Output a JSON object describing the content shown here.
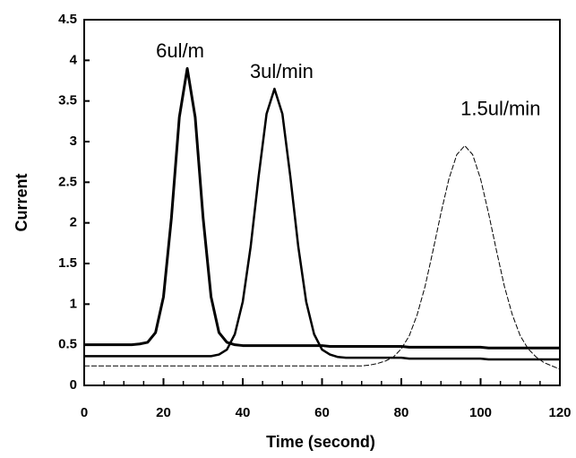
{
  "chart_data": {
    "type": "line",
    "xlabel": "Time (second)",
    "ylabel": "Current",
    "x": [
      0,
      2,
      4,
      6,
      8,
      10,
      12,
      14,
      16,
      18,
      20,
      22,
      24,
      26,
      28,
      30,
      32,
      34,
      36,
      38,
      40,
      42,
      44,
      46,
      48,
      50,
      52,
      54,
      56,
      58,
      60,
      62,
      64,
      66,
      68,
      70,
      72,
      74,
      76,
      78,
      80,
      82,
      84,
      86,
      88,
      90,
      92,
      94,
      96,
      98,
      100,
      102,
      104,
      106,
      108,
      110,
      112,
      114,
      116,
      118,
      120
    ],
    "series": [
      {
        "name": "6ul/m",
        "color": "#000000",
        "values": [
          0.5,
          0.5,
          0.5,
          0.5,
          0.5,
          0.5,
          0.5,
          0.51,
          0.53,
          0.65,
          1.09,
          2.06,
          3.3,
          3.9,
          3.3,
          2.06,
          1.09,
          0.65,
          0.53,
          0.5,
          0.49,
          0.49,
          0.49,
          0.49,
          0.49,
          0.49,
          0.49,
          0.49,
          0.49,
          0.49,
          0.49,
          0.48,
          0.48,
          0.48,
          0.48,
          0.48,
          0.48,
          0.48,
          0.48,
          0.48,
          0.48,
          0.47,
          0.47,
          0.47,
          0.47,
          0.47,
          0.47,
          0.47,
          0.47,
          0.47,
          0.47,
          0.46,
          0.46,
          0.46,
          0.46,
          0.46,
          0.46,
          0.46,
          0.46,
          0.46,
          0.46
        ]
      },
      {
        "name": "3ul/min",
        "color": "#000000",
        "values": [
          0.36,
          0.36,
          0.36,
          0.36,
          0.36,
          0.36,
          0.36,
          0.36,
          0.36,
          0.36,
          0.36,
          0.36,
          0.36,
          0.36,
          0.36,
          0.36,
          0.36,
          0.38,
          0.44,
          0.63,
          1.03,
          1.71,
          2.57,
          3.34,
          3.65,
          3.34,
          2.57,
          1.71,
          1.03,
          0.63,
          0.44,
          0.38,
          0.35,
          0.34,
          0.34,
          0.34,
          0.34,
          0.34,
          0.34,
          0.34,
          0.34,
          0.33,
          0.33,
          0.33,
          0.33,
          0.33,
          0.33,
          0.33,
          0.33,
          0.33,
          0.33,
          0.32,
          0.32,
          0.32,
          0.32,
          0.32,
          0.32,
          0.32,
          0.32,
          0.32,
          0.32
        ]
      },
      {
        "name": "1.5ul/min",
        "color": "#000000",
        "values": [
          0.24,
          0.24,
          0.24,
          0.24,
          0.24,
          0.24,
          0.24,
          0.24,
          0.24,
          0.24,
          0.24,
          0.24,
          0.24,
          0.24,
          0.24,
          0.24,
          0.24,
          0.24,
          0.24,
          0.24,
          0.24,
          0.24,
          0.24,
          0.24,
          0.24,
          0.24,
          0.24,
          0.24,
          0.24,
          0.24,
          0.24,
          0.24,
          0.24,
          0.24,
          0.24,
          0.24,
          0.25,
          0.27,
          0.3,
          0.35,
          0.45,
          0.61,
          0.87,
          1.22,
          1.66,
          2.12,
          2.54,
          2.84,
          2.95,
          2.84,
          2.54,
          2.12,
          1.66,
          1.22,
          0.87,
          0.61,
          0.45,
          0.35,
          0.28,
          0.24,
          0.2
        ]
      }
    ],
    "xlim": [
      0,
      120
    ],
    "xticks": [
      0,
      20,
      40,
      60,
      80,
      100,
      120
    ],
    "xminorticks": [
      5,
      10,
      15,
      25,
      30,
      35,
      45,
      50,
      55,
      65,
      70,
      75,
      85,
      90,
      95,
      105,
      110,
      115
    ],
    "ylim": [
      0,
      4.5
    ],
    "yticks": [
      0,
      0.5,
      1,
      1.5,
      2,
      2.5,
      3,
      3.5,
      4,
      4.5
    ]
  }
}
